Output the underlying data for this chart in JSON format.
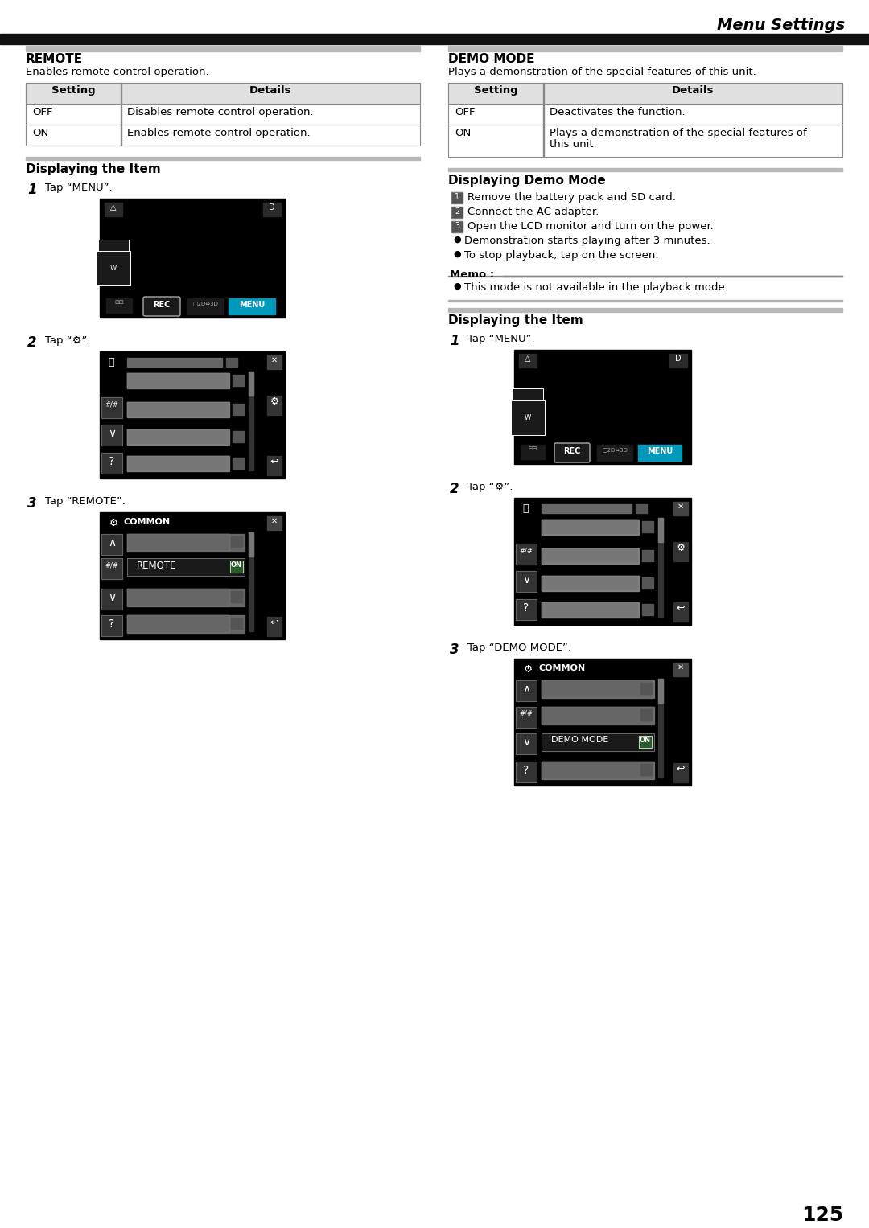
{
  "page_num": "125",
  "header_title": "Menu Settings",
  "bg_color": "#ffffff",
  "left_section": {
    "title": "REMOTE",
    "subtitle": "Enables remote control operation.",
    "table_headers": [
      "Setting",
      "Details"
    ],
    "table_rows": [
      [
        "OFF",
        "Disables remote control operation."
      ],
      [
        "ON",
        "Enables remote control operation."
      ]
    ],
    "subsection_title": "Displaying the Item",
    "steps": [
      {
        "num": "1",
        "text": "Tap “MENU”."
      },
      {
        "num": "2",
        "text": "Tap “⚙”."
      },
      {
        "num": "3",
        "text": "Tap “REMOTE”."
      }
    ]
  },
  "right_section": {
    "title": "DEMO MODE",
    "subtitle": "Plays a demonstration of the special features of this unit.",
    "table_headers": [
      "Setting",
      "Details"
    ],
    "table_rows": [
      [
        "OFF",
        "Deactivates the function."
      ],
      [
        "ON",
        "Plays a demonstration of the special features of\nthis unit."
      ]
    ],
    "subsection_title": "Displaying Demo Mode",
    "numbered_steps": [
      "Remove the battery pack and SD card.",
      "Connect the AC adapter.",
      "Open the LCD monitor and turn on the power."
    ],
    "bullet_steps": [
      "Demonstration starts playing after 3 minutes.",
      "To stop playback, tap on the screen."
    ],
    "memo_title": "Memo :",
    "memo_items": [
      "This mode is not available in the playback mode."
    ],
    "subsection2_title": "Displaying the Item",
    "steps2": [
      {
        "num": "1",
        "text": "Tap “MENU”."
      },
      {
        "num": "2",
        "text": "Tap “⚙”."
      },
      {
        "num": "3",
        "text": "Tap “DEMO MODE”."
      }
    ]
  }
}
